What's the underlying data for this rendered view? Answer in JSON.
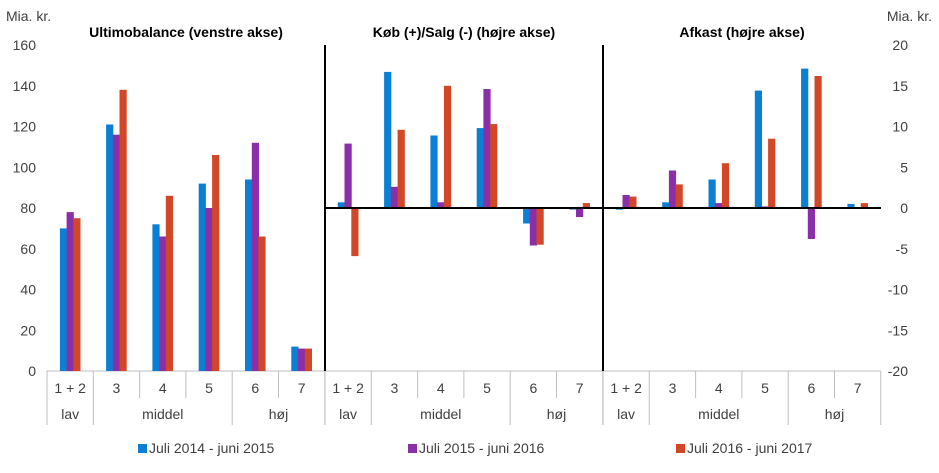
{
  "chart_data": {
    "type": "bar",
    "left_axis_unit": "Mia. kr.",
    "right_axis_unit": "Mia. kr.",
    "left_axis": {
      "ylim": [
        0,
        160
      ],
      "ticks": [
        0,
        20,
        40,
        60,
        80,
        100,
        120,
        140,
        160
      ]
    },
    "right_axis": {
      "ylim": [
        -20,
        20
      ],
      "ticks": [
        -20,
        -15,
        -10,
        -5,
        0,
        5,
        10,
        15,
        20
      ]
    },
    "categories": [
      "1 + 2",
      "3",
      "4",
      "5",
      "6",
      "7"
    ],
    "groups": [
      {
        "label": "lav",
        "categories": [
          "1 + 2"
        ]
      },
      {
        "label": "middel",
        "categories": [
          "3",
          "4",
          "5"
        ]
      },
      {
        "label": "høj",
        "categories": [
          "6",
          "7"
        ]
      }
    ],
    "legend": [
      {
        "name": "Juli 2014 - juni 2015",
        "color": "#0a7fd4"
      },
      {
        "name": "Juli 2015 - juni 2016",
        "color": "#8b2fa8"
      },
      {
        "name": "Juli 2016 - juni 2017",
        "color": "#d24727"
      }
    ],
    "panels": [
      {
        "title": "Ultimobalance (venstre akse)",
        "axis": "left",
        "series": [
          {
            "name": "Juli 2014 - juni 2015",
            "values": [
              70,
              121,
              72,
              92,
              94,
              12
            ]
          },
          {
            "name": "Juli 2015 - juni 2016",
            "values": [
              78,
              116,
              66,
              80,
              112,
              11
            ]
          },
          {
            "name": "Juli 2016 - juni 2017",
            "values": [
              75,
              138,
              86,
              106,
              66,
              11
            ]
          }
        ]
      },
      {
        "title": "Køb (+)/Salg (-) (højre akse)",
        "axis": "right",
        "series": [
          {
            "name": "Juli 2014 - juni 2015",
            "values": [
              0.7,
              16.7,
              8.9,
              9.8,
              -1.9,
              -0.2
            ]
          },
          {
            "name": "Juli 2015 - juni 2016",
            "values": [
              7.9,
              2.6,
              0.7,
              14.6,
              -4.6,
              -1.1
            ]
          },
          {
            "name": "Juli 2016 - juni 2017",
            "values": [
              -5.9,
              9.6,
              15.0,
              10.3,
              -4.5,
              0.6
            ]
          }
        ]
      },
      {
        "title": "Afkast (højre akse)",
        "axis": "right",
        "series": [
          {
            "name": "Juli 2014 - juni 2015",
            "values": [
              -0.2,
              0.7,
              3.5,
              14.4,
              17.1,
              0.5
            ]
          },
          {
            "name": "Juli 2015 - juni 2016",
            "values": [
              1.6,
              4.6,
              0.6,
              0.2,
              -3.8,
              0.1
            ]
          },
          {
            "name": "Juli 2016 - juni 2017",
            "values": [
              1.4,
              2.9,
              5.5,
              8.5,
              16.2,
              0.6
            ]
          }
        ]
      }
    ]
  }
}
